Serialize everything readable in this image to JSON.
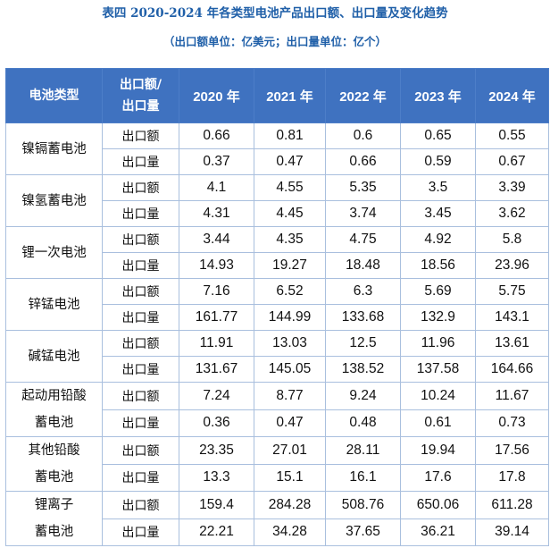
{
  "title": "表四  2020-2024 年各类型电池产品出口额、出口量及变化趋势",
  "subtitle": "（出口额单位：亿美元；出口量单位：亿个）",
  "headers": {
    "type_col": "电池类型",
    "metric_col_line1": "出口额/",
    "metric_col_line2": "出口量",
    "years": [
      "2020 年",
      "2021 年",
      "2022 年",
      "2023 年",
      "2024 年"
    ]
  },
  "metric_labels": {
    "value": "出口额",
    "quantity": "出口量"
  },
  "rows": [
    {
      "type_lines": [
        "镍镉蓄电池"
      ],
      "value": [
        "0.66",
        "0.81",
        "0.6",
        "0.65",
        "0.55"
      ],
      "quantity": [
        "0.37",
        "0.47",
        "0.66",
        "0.59",
        "0.67"
      ]
    },
    {
      "type_lines": [
        "镍氢蓄电池"
      ],
      "value": [
        "4.1",
        "4.55",
        "5.35",
        "3.5",
        "3.39"
      ],
      "quantity": [
        "4.31",
        "4.45",
        "3.74",
        "3.45",
        "3.62"
      ]
    },
    {
      "type_lines": [
        "锂一次电池"
      ],
      "value": [
        "3.44",
        "4.35",
        "4.75",
        "4.92",
        "5.8"
      ],
      "quantity": [
        "14.93",
        "19.27",
        "18.48",
        "18.56",
        "23.96"
      ]
    },
    {
      "type_lines": [
        "锌锰电池"
      ],
      "value": [
        "7.16",
        "6.52",
        "6.3",
        "5.69",
        "5.75"
      ],
      "quantity": [
        "161.77",
        "144.99",
        "133.68",
        "132.9",
        "143.1"
      ]
    },
    {
      "type_lines": [
        "碱锰电池"
      ],
      "value": [
        "11.91",
        "13.03",
        "12.5",
        "11.96",
        "13.61"
      ],
      "quantity": [
        "131.67",
        "145.05",
        "138.52",
        "137.58",
        "164.66"
      ]
    },
    {
      "type_lines": [
        "起动用铅酸",
        "蓄电池"
      ],
      "value": [
        "7.24",
        "8.77",
        "9.24",
        "10.24",
        "11.67"
      ],
      "quantity": [
        "0.36",
        "0.47",
        "0.48",
        "0.61",
        "0.73"
      ]
    },
    {
      "type_lines": [
        "其他铅酸",
        "蓄电池"
      ],
      "value": [
        "23.35",
        "27.01",
        "28.11",
        "19.94",
        "17.56"
      ],
      "quantity": [
        "13.3",
        "15.1",
        "16.1",
        "17.6",
        "17.8"
      ]
    },
    {
      "type_lines": [
        "锂离子",
        "蓄电池"
      ],
      "value": [
        "159.4",
        "284.28",
        "508.76",
        "650.06",
        "611.28"
      ],
      "quantity": [
        "22.21",
        "34.28",
        "37.65",
        "36.21",
        "39.14"
      ]
    }
  ]
}
